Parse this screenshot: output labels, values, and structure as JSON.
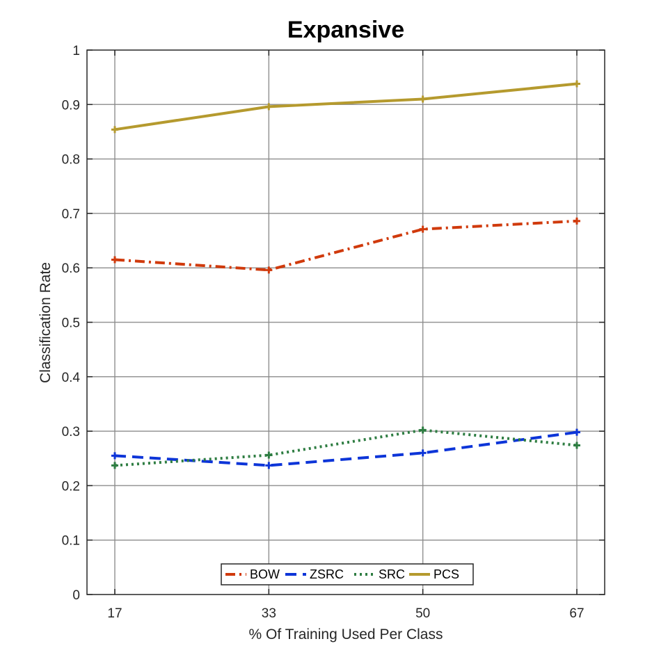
{
  "chart_data": {
    "type": "line",
    "title": "Expansive",
    "xlabel": "% Of Training Used Per Class",
    "ylabel": "Classification Rate",
    "categories": [
      "17",
      "33",
      "50",
      "67"
    ],
    "ylim": [
      0,
      1
    ],
    "yticks": [
      "0",
      "0.1",
      "0.2",
      "0.3",
      "0.4",
      "0.5",
      "0.6",
      "0.7",
      "0.8",
      "0.9",
      "1"
    ],
    "grid": true,
    "legend_position": "bottom-center",
    "series": [
      {
        "name": "BOW",
        "values": [
          0.615,
          0.596,
          0.671,
          0.686
        ],
        "color": "#d03a0c",
        "dash": "dashdot"
      },
      {
        "name": "ZSRC",
        "values": [
          0.255,
          0.237,
          0.26,
          0.298
        ],
        "color": "#0d35d8",
        "dash": "dash"
      },
      {
        "name": "SRC",
        "values": [
          0.237,
          0.256,
          0.302,
          0.274
        ],
        "color": "#2e7d42",
        "dash": "dot"
      },
      {
        "name": "PCS",
        "values": [
          0.854,
          0.896,
          0.91,
          0.938
        ],
        "color": "#b59a2e",
        "dash": "solid"
      }
    ]
  }
}
